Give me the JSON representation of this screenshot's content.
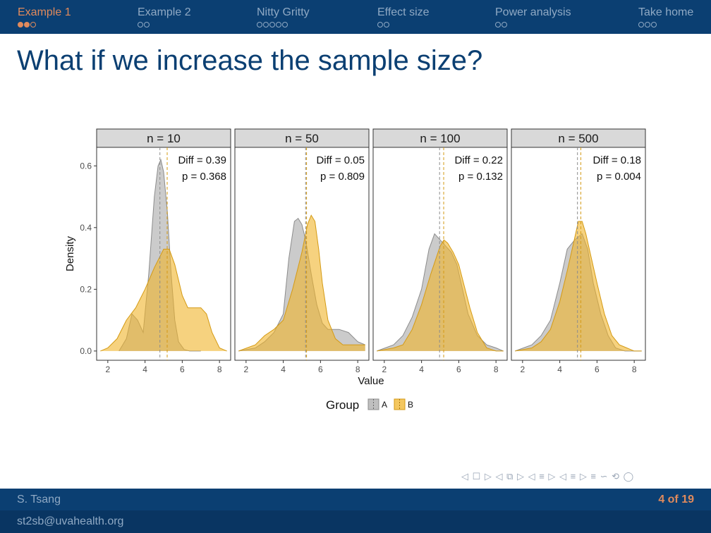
{
  "nav": {
    "sections": [
      {
        "label": "Example 1",
        "dots": 3,
        "filled": 2,
        "active": true
      },
      {
        "label": "Example 2",
        "dots": 2,
        "filled": 0,
        "active": false
      },
      {
        "label": "Nitty Gritty",
        "dots": 5,
        "filled": 0,
        "active": false
      },
      {
        "label": "Effect size",
        "dots": 2,
        "filled": 0,
        "active": false
      },
      {
        "label": "Power analysis",
        "dots": 2,
        "filled": 0,
        "active": false
      },
      {
        "label": "Take home",
        "dots": 3,
        "filled": 0,
        "active": false
      }
    ]
  },
  "slide": {
    "title": "What if we increase the sample size?"
  },
  "footer": {
    "author": "S. Tsang",
    "email": "st2sb@uvahealth.org",
    "page": "4 of 19"
  },
  "beamer_nav_symbols": "◁ ☐ ▷ ◁ ⧉ ▷ ◁ ≡ ▷ ◁ ≡ ▷   ≡   ∽ ⟲ ◯",
  "colors": {
    "group_A": "#a9a9a9",
    "group_B": "#f0b429",
    "accent": "#e08a5c",
    "nav_bg": "#0b3f72"
  },
  "chart_data": {
    "type": "area",
    "subtype": "density, faceted",
    "xlabel": "Value",
    "ylabel": "Density",
    "xlim": [
      1.4,
      8.6
    ],
    "ylim": [
      -0.03,
      0.66
    ],
    "x_ticks": [
      2,
      4,
      6,
      8
    ],
    "y_ticks": [
      0.0,
      0.2,
      0.4,
      0.6
    ],
    "y_tick_labels": [
      "0.0",
      "0.2",
      "0.4",
      "0.6"
    ],
    "grid": false,
    "legend": {
      "title": "Group",
      "position": "bottom",
      "entries": [
        "A",
        "B"
      ]
    },
    "facets": [
      {
        "label": "n = 10",
        "annotation": {
          "diff": "Diff = 0.39",
          "p": "p = 0.368"
        },
        "mean_A": 4.8,
        "mean_B": 5.19,
        "series": [
          {
            "name": "A",
            "x": [
              2.6,
              3.0,
              3.3,
              3.6,
              3.9,
              4.2,
              4.5,
              4.7,
              4.85,
              5.0,
              5.2,
              5.4,
              5.6,
              5.8,
              6.1,
              6.4,
              6.8,
              7.0
            ],
            "y": [
              0.0,
              0.04,
              0.12,
              0.1,
              0.06,
              0.25,
              0.5,
              0.6,
              0.62,
              0.58,
              0.45,
              0.25,
              0.1,
              0.03,
              0.005,
              0.0,
              0.0,
              0.0
            ]
          },
          {
            "name": "B",
            "x": [
              1.6,
              2.0,
              2.5,
              3.0,
              3.5,
              4.0,
              4.5,
              5.0,
              5.3,
              5.6,
              6.0,
              6.3,
              6.6,
              7.0,
              7.3,
              7.6,
              8.0,
              8.4
            ],
            "y": [
              0.0,
              0.01,
              0.04,
              0.1,
              0.14,
              0.2,
              0.27,
              0.33,
              0.33,
              0.28,
              0.18,
              0.14,
              0.14,
              0.14,
              0.12,
              0.06,
              0.01,
              0.0
            ]
          }
        ]
      },
      {
        "label": "n = 50",
        "annotation": {
          "diff": "Diff = 0.05",
          "p": "p = 0.809"
        },
        "mean_A": 5.2,
        "mean_B": 5.25,
        "series": [
          {
            "name": "A",
            "x": [
              1.6,
              2.5,
              3.0,
              3.5,
              4.0,
              4.3,
              4.6,
              4.8,
              5.0,
              5.2,
              5.5,
              5.8,
              6.1,
              6.4,
              6.7,
              7.0,
              7.5,
              8.0,
              8.4
            ],
            "y": [
              0.0,
              0.01,
              0.03,
              0.06,
              0.12,
              0.3,
              0.42,
              0.43,
              0.41,
              0.36,
              0.25,
              0.15,
              0.09,
              0.07,
              0.07,
              0.07,
              0.06,
              0.03,
              0.02
            ]
          },
          {
            "name": "B",
            "x": [
              1.6,
              2.5,
              3.0,
              3.5,
              4.0,
              4.5,
              5.0,
              5.3,
              5.5,
              5.7,
              5.9,
              6.1,
              6.4,
              6.8,
              7.2,
              7.6,
              8.0,
              8.4
            ],
            "y": [
              0.0,
              0.02,
              0.05,
              0.07,
              0.1,
              0.2,
              0.32,
              0.41,
              0.44,
              0.42,
              0.33,
              0.22,
              0.1,
              0.04,
              0.02,
              0.02,
              0.02,
              0.02
            ]
          }
        ]
      },
      {
        "label": "n = 100",
        "annotation": {
          "diff": "Diff = 0.22",
          "p": "p = 0.132"
        },
        "mean_A": 4.97,
        "mean_B": 5.19,
        "series": [
          {
            "name": "A",
            "x": [
              1.6,
              2.5,
              3.0,
              3.5,
              4.0,
              4.4,
              4.7,
              5.0,
              5.3,
              5.6,
              5.9,
              6.2,
              6.5,
              7.0,
              7.5,
              8.0,
              8.4
            ],
            "y": [
              0.0,
              0.02,
              0.05,
              0.11,
              0.2,
              0.33,
              0.38,
              0.36,
              0.34,
              0.32,
              0.28,
              0.2,
              0.12,
              0.05,
              0.02,
              0.01,
              0.0
            ]
          },
          {
            "name": "B",
            "x": [
              1.6,
              2.5,
              3.0,
              3.5,
              4.0,
              4.5,
              5.0,
              5.2,
              5.4,
              5.7,
              6.0,
              6.3,
              6.6,
              7.0,
              7.5,
              8.0,
              8.4
            ],
            "y": [
              0.0,
              0.01,
              0.02,
              0.07,
              0.15,
              0.25,
              0.34,
              0.36,
              0.35,
              0.32,
              0.28,
              0.21,
              0.14,
              0.06,
              0.01,
              0.0,
              0.0
            ]
          }
        ]
      },
      {
        "label": "n = 500",
        "annotation": {
          "diff": "Diff = 0.18",
          "p": "p = 0.004"
        },
        "mean_A": 4.95,
        "mean_B": 5.13,
        "series": [
          {
            "name": "A",
            "x": [
              1.6,
              2.5,
              3.0,
              3.5,
              4.0,
              4.4,
              4.8,
              5.0,
              5.2,
              5.5,
              5.8,
              6.2,
              6.6,
              7.0,
              7.5,
              8.0,
              8.4
            ],
            "y": [
              0.0,
              0.02,
              0.05,
              0.1,
              0.22,
              0.33,
              0.36,
              0.37,
              0.38,
              0.33,
              0.22,
              0.12,
              0.05,
              0.01,
              0.0,
              0.0,
              0.0
            ]
          },
          {
            "name": "B",
            "x": [
              1.6,
              2.5,
              3.0,
              3.5,
              4.0,
              4.4,
              4.7,
              5.0,
              5.2,
              5.4,
              5.7,
              6.0,
              6.4,
              6.8,
              7.2,
              7.6,
              8.0,
              8.4
            ],
            "y": [
              0.0,
              0.01,
              0.03,
              0.07,
              0.16,
              0.26,
              0.34,
              0.42,
              0.42,
              0.38,
              0.3,
              0.22,
              0.12,
              0.05,
              0.02,
              0.01,
              0.0,
              0.0
            ]
          }
        ]
      }
    ]
  }
}
